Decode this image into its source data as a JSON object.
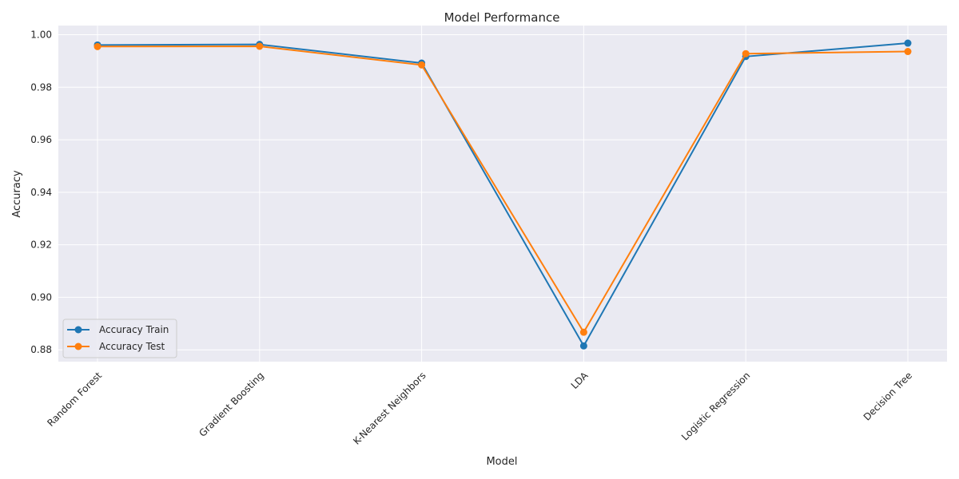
{
  "chart_data": {
    "type": "line",
    "title": "Model Performance",
    "xlabel": "Model",
    "ylabel": "Accuracy",
    "categories": [
      "Random Forest",
      "Gradient Boosting",
      "K-Nearest Neighbors",
      "LDA",
      "Logistic Regression",
      "Decision Tree"
    ],
    "series": [
      {
        "name": "Accuracy Train",
        "color": "#1f77b4",
        "values": [
          0.9961,
          0.9963,
          0.9892,
          0.8815,
          0.9917,
          0.9968
        ]
      },
      {
        "name": "Accuracy Test",
        "color": "#ff7f0e",
        "values": [
          0.9955,
          0.9956,
          0.9885,
          0.8867,
          0.9928,
          0.9936
        ]
      }
    ],
    "ylim": [
      0.8755,
      1.0035
    ],
    "yticks": [
      0.88,
      0.9,
      0.92,
      0.94,
      0.96,
      0.98,
      1.0
    ],
    "ytick_labels": [
      "0.88",
      "0.90",
      "0.92",
      "0.94",
      "0.96",
      "0.98",
      "1.00"
    ],
    "grid": true,
    "legend_position": "lower-left",
    "plot_background": "#eaeaf2"
  }
}
